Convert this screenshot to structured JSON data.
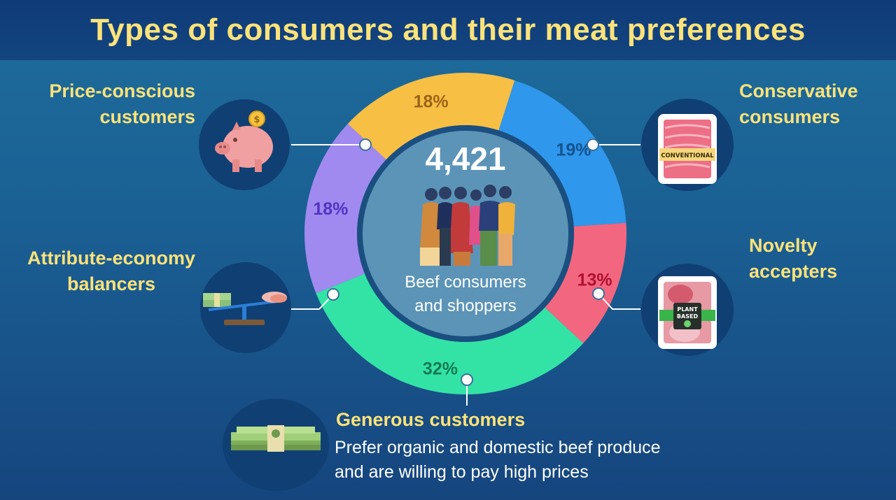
{
  "title": "Types of consumers and their meat preferences",
  "center": {
    "total": "4,421",
    "caption_line1": "Beef consumers",
    "caption_line2": "and shoppers"
  },
  "segments": [
    {
      "label_line1": "Price-conscious",
      "label_line2": "customers",
      "percent_label": "18%",
      "icon": "piggy-bank-icon"
    },
    {
      "label_line1": "Conservative",
      "label_line2": "consumers",
      "percent_label": "19%",
      "icon": "conventional-meat-pack-icon",
      "pack_text": "CONVENTIONAL"
    },
    {
      "label_line1": "Novelty",
      "label_line2": "accepters",
      "percent_label": "13%",
      "icon": "plant-based-meat-pack-icon",
      "pack_text_line1": "PLANT",
      "pack_text_line2": "BASED"
    },
    {
      "label_line1": "Generous customers",
      "description_line1": "Prefer organic and domestic beef produce",
      "description_line2": "and are willing to pay high prices",
      "percent_label": "32%",
      "icon": "cash-stack-icon"
    },
    {
      "label_line1": "Attribute-economy",
      "label_line2": "balancers",
      "percent_label": "18%",
      "icon": "balance-scale-icon"
    }
  ],
  "chart_data": {
    "type": "pie",
    "variant": "donut",
    "total": 4421,
    "categories": [
      "Price-conscious customers",
      "Conservative consumers",
      "Novelty accepters",
      "Generous customers",
      "Attribute-economy balancers"
    ],
    "values": [
      18,
      19,
      13,
      32,
      18
    ],
    "colors": [
      "#f8bf45",
      "#2f97ec",
      "#f2677f",
      "#33e3a6",
      "#a08af0"
    ],
    "label_colors": [
      "#9c6417",
      "#14538f",
      "#b01030",
      "#127a52",
      "#4f35c2"
    ]
  }
}
